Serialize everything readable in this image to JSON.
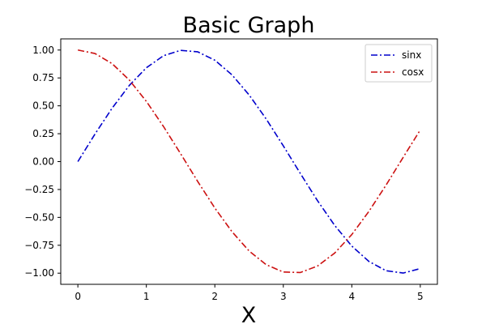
{
  "chart_data": {
    "type": "line",
    "title": "Basic Graph",
    "xlabel": "X",
    "ylabel": "",
    "xlim": [
      -0.25,
      5.25
    ],
    "ylim": [
      -1.1,
      1.1
    ],
    "xticks": [
      0,
      1,
      2,
      3,
      4,
      5
    ],
    "yticks": [
      -1.0,
      -0.75,
      -0.5,
      -0.25,
      0.0,
      0.25,
      0.5,
      0.75,
      1.0
    ],
    "xtick_labels": [
      "0",
      "1",
      "2",
      "3",
      "4",
      "5"
    ],
    "ytick_labels": [
      "−1.00",
      "−0.75",
      "−0.50",
      "−0.25",
      "0.00",
      "0.25",
      "0.50",
      "0.75",
      "1.00"
    ],
    "grid": false,
    "legend_position": "top-right",
    "series": [
      {
        "name": "sinx",
        "color": "#0000cc",
        "style": "dash-dot",
        "x": [
          0.0,
          0.25,
          0.5,
          0.75,
          1.0,
          1.25,
          1.5,
          1.75,
          2.0,
          2.25,
          2.5,
          2.75,
          3.0,
          3.25,
          3.5,
          3.75,
          4.0,
          4.25,
          4.5,
          4.75,
          5.0
        ],
        "y": [
          0.0,
          0.247,
          0.479,
          0.682,
          0.841,
          0.949,
          0.997,
          0.984,
          0.909,
          0.778,
          0.598,
          0.382,
          0.141,
          -0.108,
          -0.351,
          -0.572,
          -0.757,
          -0.895,
          -0.978,
          -0.999,
          -0.959
        ]
      },
      {
        "name": "cosx",
        "color": "#cc1111",
        "style": "dash-dot",
        "x": [
          0.0,
          0.25,
          0.5,
          0.75,
          1.0,
          1.25,
          1.5,
          1.75,
          2.0,
          2.25,
          2.5,
          2.75,
          3.0,
          3.25,
          3.5,
          3.75,
          4.0,
          4.25,
          4.5,
          4.75,
          5.0
        ],
        "y": [
          1.0,
          0.969,
          0.878,
          0.732,
          0.54,
          0.315,
          0.071,
          -0.178,
          -0.416,
          -0.628,
          -0.801,
          -0.924,
          -0.99,
          -0.994,
          -0.936,
          -0.82,
          -0.654,
          -0.446,
          -0.211,
          0.038,
          0.284
        ]
      }
    ]
  }
}
